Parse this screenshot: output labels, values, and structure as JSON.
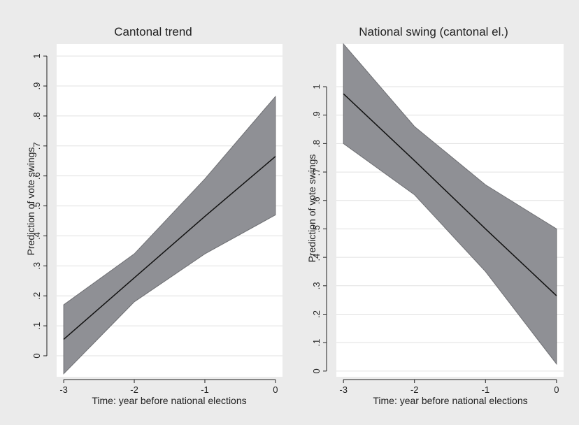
{
  "colors": {
    "outer_background": "#ebebeb",
    "plot_background": "#ffffff",
    "band_fill": "#8f9095",
    "band_stroke": "#6e6f73",
    "line": "#111111",
    "grid": "#e0e0e0",
    "axis": "#222222"
  },
  "chart_data": [
    {
      "type": "area",
      "title": "Cantonal trend",
      "xlabel": "Time: year before national elections",
      "ylabel": "Prediction of vote swings",
      "x": [
        -3,
        -2,
        -1,
        0
      ],
      "xticks": [
        -3,
        -2,
        -1,
        0
      ],
      "xtick_labels": [
        "-3",
        "-2",
        "-1",
        "0"
      ],
      "xlim": [
        -3.1,
        0.1
      ],
      "ylim": [
        -0.07,
        1.04
      ],
      "yticks": [
        0,
        0.1,
        0.2,
        0.3,
        0.4,
        0.5,
        0.6,
        0.7,
        0.8,
        0.9,
        1.0
      ],
      "ytick_labels": [
        "0",
        ".1",
        ".2",
        ".3",
        ".4",
        ".5",
        ".6",
        ".7",
        ".8",
        ".9",
        "1"
      ],
      "grid": true,
      "series": [
        {
          "values": [
            0.055,
            0.26,
            0.465,
            0.665
          ]
        }
      ],
      "ci_lower": [
        -0.06,
        0.18,
        0.34,
        0.47
      ],
      "ci_upper": [
        0.17,
        0.34,
        0.59,
        0.865
      ]
    },
    {
      "type": "area",
      "title": "National swing (cantonal el.)",
      "xlabel": "Time: year before national elections",
      "ylabel": "Prediction of vote swings",
      "x": [
        -3,
        -2,
        -1,
        0
      ],
      "xticks": [
        -3,
        -2,
        -1,
        0
      ],
      "xtick_labels": [
        "-3",
        "-2",
        "-1",
        "0"
      ],
      "xlim": [
        -3.1,
        0.1
      ],
      "ylim": [
        -0.02,
        1.15
      ],
      "yticks": [
        0,
        0.1,
        0.2,
        0.3,
        0.4,
        0.5,
        0.6,
        0.7,
        0.8,
        0.9,
        1.0
      ],
      "ytick_labels": [
        "0",
        ".1",
        ".2",
        ".3",
        ".4",
        ".5",
        ".6",
        ".7",
        ".8",
        ".9",
        "1"
      ],
      "grid": true,
      "series": [
        {
          "values": [
            0.975,
            0.74,
            0.5,
            0.265
          ]
        }
      ],
      "ci_lower": [
        0.8,
        0.62,
        0.35,
        0.025
      ],
      "ci_upper": [
        1.15,
        0.86,
        0.655,
        0.5
      ]
    }
  ]
}
